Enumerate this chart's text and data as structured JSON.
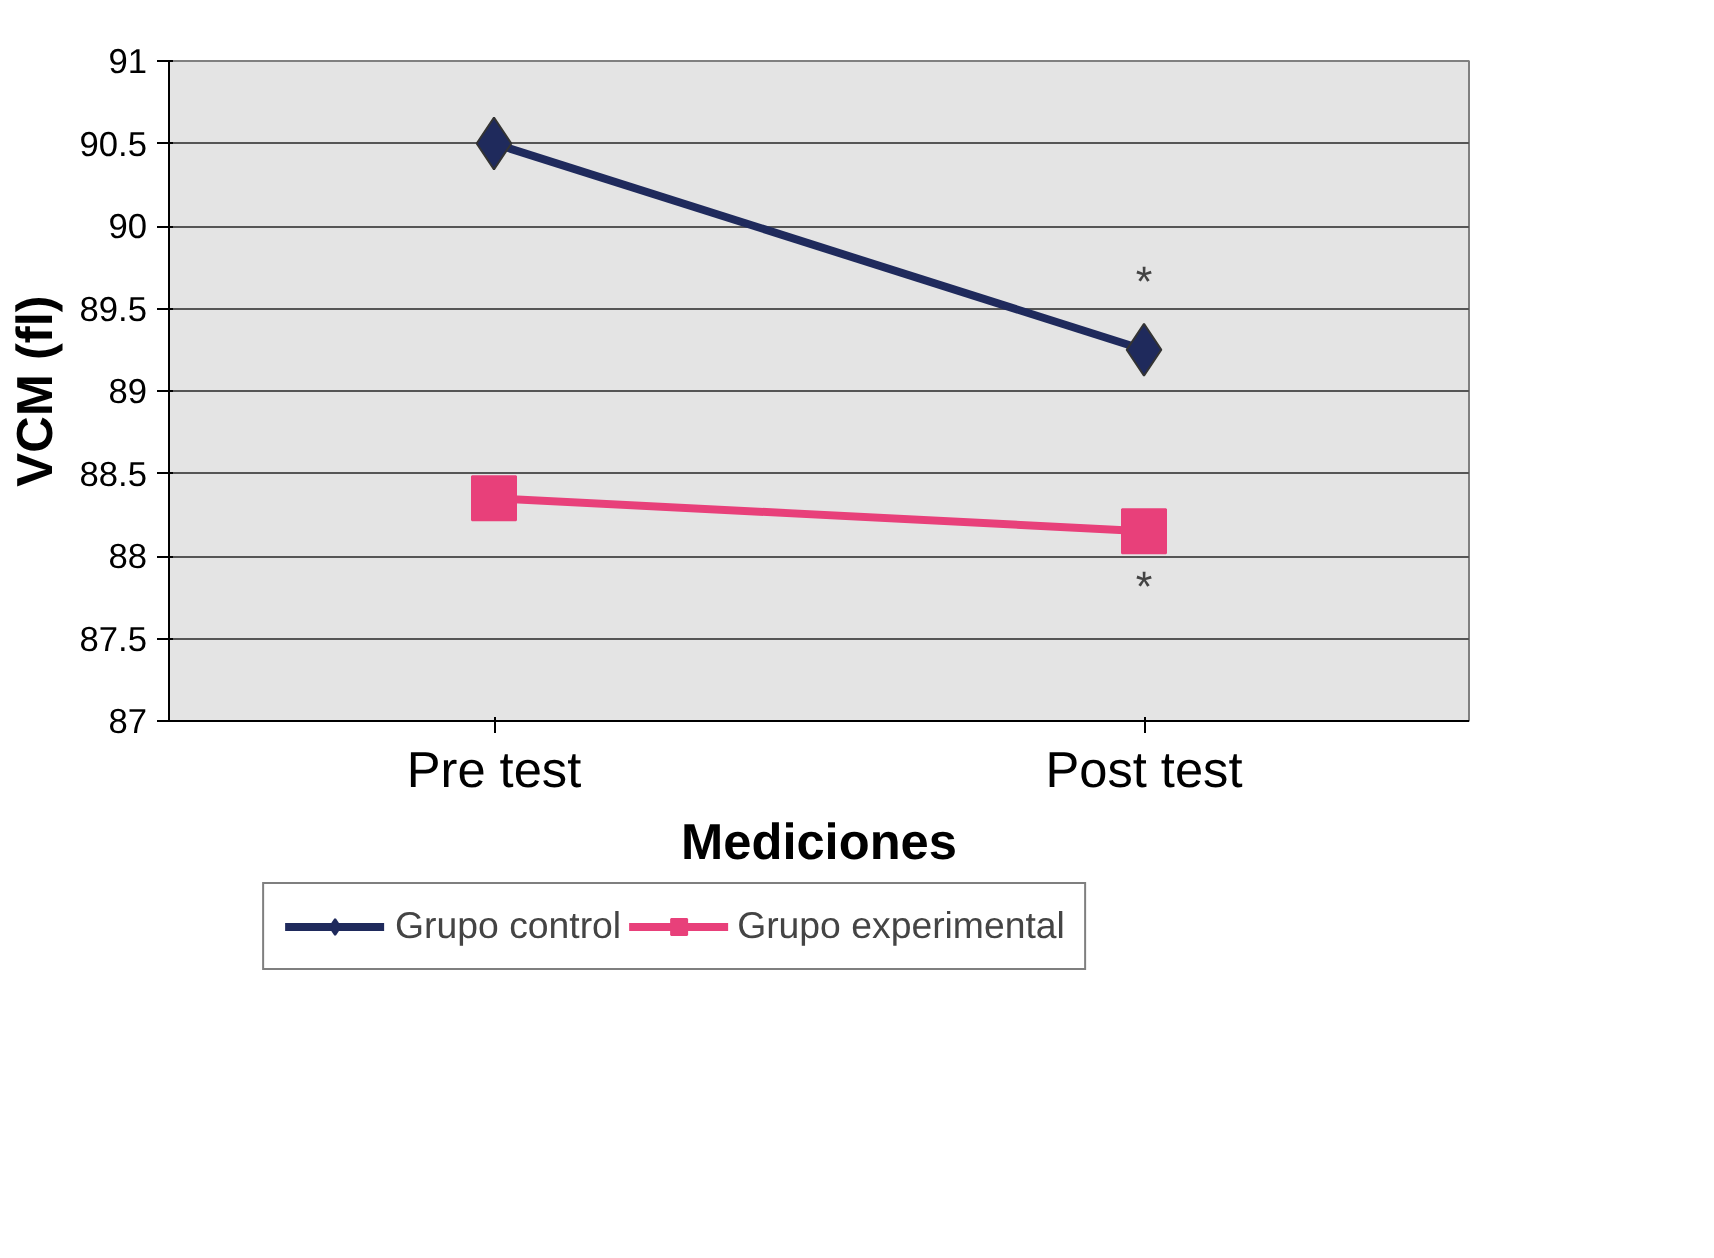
{
  "chart_data": {
    "type": "line",
    "xlabel": "Mediciones",
    "ylabel": "VCM (fl)",
    "categories": [
      "Pre test",
      "Post test"
    ],
    "series": [
      {
        "name": "Grupo control",
        "color": "#1f2a5c",
        "values": [
          90.5,
          89.25
        ],
        "marker": "diamond"
      },
      {
        "name": "Grupo experimental",
        "color": "#e8407a",
        "values": [
          88.35,
          88.15
        ],
        "marker": "square"
      }
    ],
    "ylim": [
      87,
      91
    ],
    "yticks": [
      87,
      87.5,
      88,
      88.5,
      89,
      89.5,
      90,
      90.5,
      91
    ],
    "grid": "y",
    "legend": "bottom",
    "line_style": "solid",
    "annotations": [
      "*",
      "*"
    ]
  }
}
